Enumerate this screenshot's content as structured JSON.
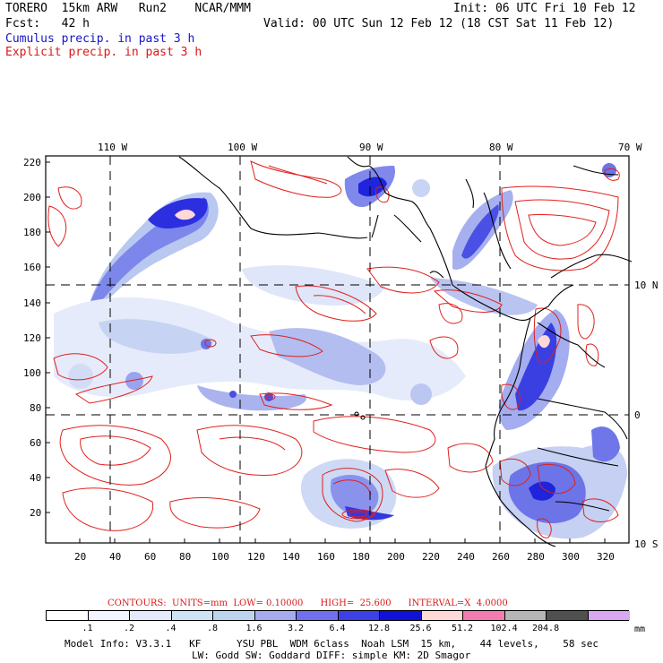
{
  "header": {
    "line1_left": "TORERO  15km ARW   Run2    NCAR/MMM",
    "line1_right": "Init: 06 UTC Fri 10 Feb 12",
    "line2_left": "Fcst:   42 h",
    "line2_right": "Valid: 00 UTC Sun 12 Feb 12 (18 CST Sat 11 Feb 12)",
    "legend_blue": "Cumulus precip. in past 3 h",
    "legend_red": "Explicit precip. in past 3 h",
    "colors": {
      "blue_text": "#1515c8",
      "red_text": "#d81818"
    }
  },
  "map": {
    "top_lon_labels": [
      "110 W",
      "100 W",
      "90 W",
      "80 W",
      "70 W"
    ],
    "right_lat_labels": [
      "10 N",
      "0",
      "10 S"
    ],
    "y_ticks": [
      "220",
      "200",
      "180",
      "160",
      "140",
      "120",
      "100",
      "80",
      "60",
      "40",
      "20"
    ],
    "x_ticks": [
      "20",
      "40",
      "60",
      "80",
      "100",
      "120",
      "140",
      "160",
      "180",
      "200",
      "220",
      "240",
      "260",
      "280",
      "300",
      "320"
    ],
    "colors": {
      "land": "#000000",
      "grid": "#000000",
      "contour": "#e0201c"
    }
  },
  "contours_info": {
    "text": "CONTOURS:  UNITS=mm  LOW= 0.10000      HIGH=  25.600      INTERVAL=X  4.0000"
  },
  "colorbar": {
    "unit": "mm",
    "labels": [
      ".1",
      ".2",
      ".4",
      ".8",
      "1.6",
      "3.2",
      "6.4",
      "12.8",
      "25.6",
      "51.2",
      "102.4",
      "204.8"
    ],
    "colors": [
      "#ffffff",
      "#f2f4ff",
      "#e4e9fb",
      "#cfe3f7",
      "#bdd4ef",
      "#a6aaee",
      "#7070ee",
      "#3c40e6",
      "#1111d8",
      "#ffd8d8",
      "#f27cae",
      "#b6b6b6",
      "#505050",
      "#d8a8f0"
    ]
  },
  "footer": {
    "line1": "Model Info: V3.3.1   KF      YSU PBL  WDM 6class  Noah LSM  15 km,    44 levels,    58 sec",
    "line2": "LW: Godd SW: Goddard DIFF: simple KM: 2D Smagor"
  }
}
